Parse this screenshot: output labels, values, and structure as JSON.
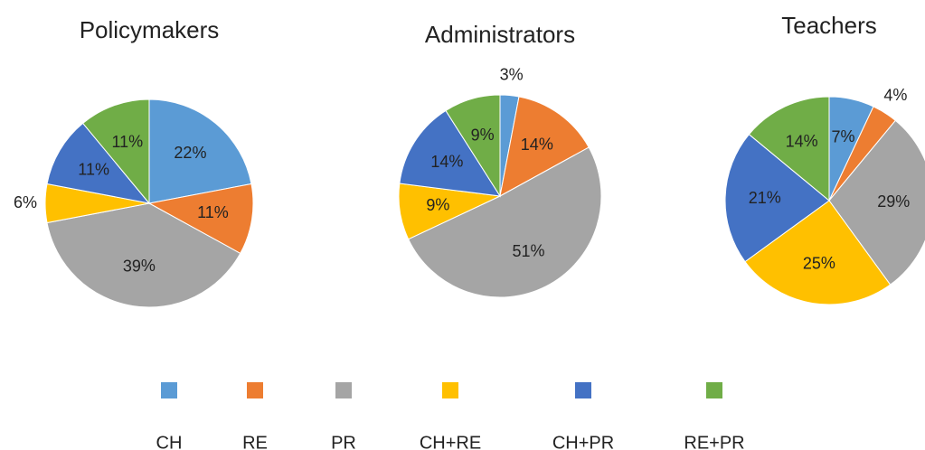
{
  "chart_data": [
    {
      "type": "pie",
      "title": "Policymakers",
      "values": [
        22,
        11,
        39,
        6,
        11,
        11
      ]
    },
    {
      "type": "pie",
      "title": "Administrators",
      "values": [
        3,
        14,
        51,
        9,
        14,
        9
      ]
    },
    {
      "type": "pie",
      "title": "Teachers",
      "values": [
        7,
        4,
        29,
        25,
        21,
        14
      ]
    }
  ],
  "legend": {
    "labels": [
      "CH",
      "RE",
      "PR",
      "CH+RE",
      "CH+PR",
      "RE+PR"
    ],
    "colors": [
      "#5b9bd5",
      "#ed7d31",
      "#a5a5a5",
      "#ffc000",
      "#4472c4",
      "#70ad47"
    ]
  }
}
